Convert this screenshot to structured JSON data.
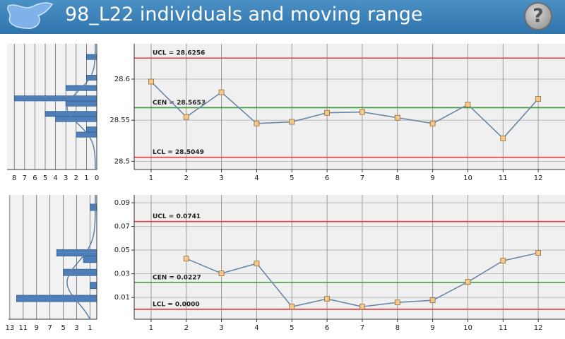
{
  "header": {
    "title": "98_L22 individuals and moving range",
    "help_label": "?"
  },
  "chart_data": [
    {
      "type": "histogram",
      "orientation": "horizontal",
      "color": "#4f7fb8",
      "bins": [
        28.5293,
        28.5356,
        28.5419,
        28.5482,
        28.5545,
        28.5608,
        28.5671,
        28.5734,
        28.5797,
        28.586,
        28.5923,
        28.5986,
        28.6049,
        28.6112,
        28.6175,
        28.6238,
        28.6301
      ],
      "values": [
        2,
        1,
        0,
        4,
        5,
        0,
        3,
        8,
        0,
        3,
        0,
        1,
        0,
        0,
        0,
        1
      ],
      "xlim": [
        8.7,
        0
      ],
      "xticks": [
        8,
        7,
        6,
        5,
        4,
        3,
        2,
        1,
        0
      ],
      "ylim": [
        28.49,
        28.643
      ],
      "grid": true
    },
    {
      "type": "line",
      "color": "#6a87a8",
      "marker_color": "#f3c88e",
      "x": [
        1,
        2,
        3,
        4,
        5,
        6,
        7,
        8,
        9,
        10,
        11,
        12
      ],
      "values": [
        28.597,
        28.554,
        28.584,
        28.546,
        28.548,
        28.559,
        28.56,
        28.553,
        28.546,
        28.569,
        28.528,
        28.576
      ],
      "xlim": [
        0.52,
        12.76
      ],
      "xticks": [
        1,
        2,
        3,
        4,
        5,
        6,
        7,
        8,
        9,
        10,
        11,
        12
      ],
      "ylim": [
        28.49,
        28.643
      ],
      "yticks": [
        28.5,
        28.55,
        28.6
      ],
      "grid": true,
      "annotations": [
        {
          "label": "UCL = 28.6256",
          "value": 28.6256,
          "color": "#e8383a"
        },
        {
          "label": "CEN = 28.5653",
          "value": 28.5653,
          "color": "#3a9a3a"
        },
        {
          "label": "LCL = 28.5049",
          "value": 28.5049,
          "color": "#e8383a"
        }
      ]
    },
    {
      "type": "histogram",
      "orientation": "horizontal",
      "color": "#4f7fb8",
      "bins": [
        0.0064,
        0.0119,
        0.0174,
        0.0229,
        0.0284,
        0.0339,
        0.0394,
        0.0449,
        0.0504,
        0.0559,
        0.0614,
        0.0669,
        0.0724,
        0.0779,
        0.0834,
        0.0889
      ],
      "values": [
        12,
        0,
        1,
        0,
        5,
        0,
        2,
        6,
        0,
        0,
        0,
        0,
        0,
        0,
        1
      ],
      "xlim": [
        13.2,
        0
      ],
      "xticks": [
        13,
        11,
        9,
        7,
        5,
        3,
        1
      ],
      "ylim": [
        -0.0084,
        0.0966
      ],
      "grid": true
    },
    {
      "type": "line",
      "color": "#6a87a8",
      "marker_color": "#f3c88e",
      "x": [
        1,
        2,
        3,
        4,
        5,
        6,
        7,
        8,
        9,
        10,
        11,
        12
      ],
      "values": [
        null,
        0.0428,
        0.0303,
        0.0387,
        0.0022,
        0.0088,
        0.0022,
        0.0058,
        0.0076,
        0.0231,
        0.041,
        0.0476
      ],
      "xlim": [
        0.52,
        12.76
      ],
      "xticks": [
        1,
        2,
        3,
        4,
        5,
        6,
        7,
        8,
        9,
        10,
        11,
        12
      ],
      "ylim": [
        -0.0084,
        0.0966
      ],
      "yticks": [
        0.01,
        0.03,
        0.05,
        0.07,
        0.09
      ],
      "grid": true,
      "annotations": [
        {
          "label": "UCL = 0.0741",
          "value": 0.0741,
          "color": "#e8383a"
        },
        {
          "label": "CEN = 0.0227",
          "value": 0.0227,
          "color": "#3a9a3a"
        },
        {
          "label": "LCL = 0.0000",
          "value": 0,
          "color": "#e8383a"
        }
      ]
    }
  ]
}
